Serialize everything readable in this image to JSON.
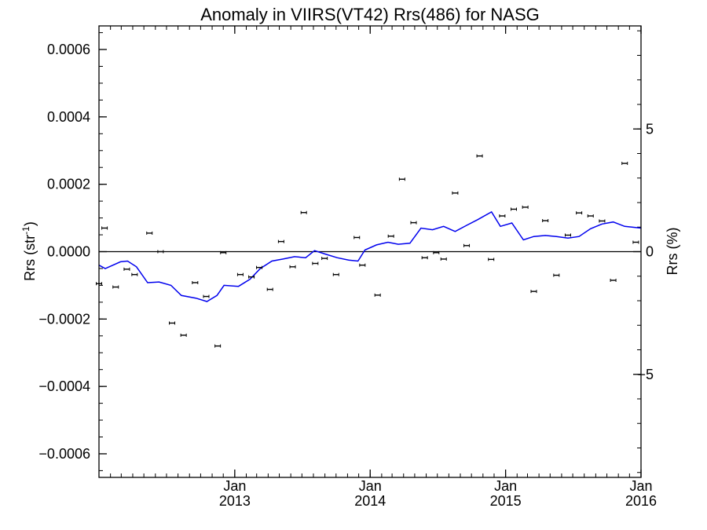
{
  "chart_data": {
    "type": "scatter",
    "title": "Anomaly in VIIRS(VT42) Rrs(486) for NASG",
    "ylabel_left": "Rrs (str",
    "ylabel_left_sup": "-1",
    "ylabel_left_close": ")",
    "ylabel_right": "Rrs (%)",
    "xlim": [
      "2012-01-01",
      "2016-01-01"
    ],
    "ylim": [
      -0.00067,
      0.00067
    ],
    "y2lim": [
      -9.2,
      9.2
    ],
    "grid": false,
    "x_ticks": [
      {
        "date": "2013-01-01",
        "month": "Jan",
        "year": "2013"
      },
      {
        "date": "2014-01-01",
        "month": "Jan",
        "year": "2014"
      },
      {
        "date": "2015-01-01",
        "month": "Jan",
        "year": "2015"
      },
      {
        "date": "2016-01-01",
        "month": "Jan",
        "year": "2016"
      }
    ],
    "y_ticks": [
      {
        "value": 0.0006,
        "label": "0.0006"
      },
      {
        "value": 0.0004,
        "label": "0.0004"
      },
      {
        "value": 0.0002,
        "label": "0.0002"
      },
      {
        "value": 0.0,
        "label": "0.0000"
      },
      {
        "value": -0.0002,
        "label": "−0.0002"
      },
      {
        "value": -0.0004,
        "label": "−0.0004"
      },
      {
        "value": -0.0006,
        "label": "−0.0006"
      }
    ],
    "y2_ticks": [
      {
        "value": 5,
        "label": "5"
      },
      {
        "value": 0,
        "label": "0"
      },
      {
        "value": -5,
        "label": "−5"
      }
    ],
    "zero_line": 0,
    "series": [
      {
        "kind": "points-with-errorbars",
        "axis": "left",
        "color": "#000000",
        "points": [
          {
            "x": "2012-01-01",
            "y": -9.5e-05
          },
          {
            "x": "2012-01-16",
            "y": 7e-05
          },
          {
            "x": "2012-02-15",
            "y": -0.000105
          },
          {
            "x": "2012-03-16",
            "y": -5.2e-05
          },
          {
            "x": "2012-04-06",
            "y": -6.8e-05
          },
          {
            "x": "2012-05-16",
            "y": 5.5e-05
          },
          {
            "x": "2012-06-15",
            "y": 0.0
          },
          {
            "x": "2012-07-16",
            "y": -0.000212
          },
          {
            "x": "2012-08-16",
            "y": -0.000248
          },
          {
            "x": "2012-09-16",
            "y": -9.2e-05
          },
          {
            "x": "2012-10-16",
            "y": -0.000133
          },
          {
            "x": "2012-11-16",
            "y": -0.00028
          },
          {
            "x": "2012-12-01",
            "y": -3e-06
          },
          {
            "x": "2013-01-16",
            "y": -6.8e-05
          },
          {
            "x": "2013-02-15",
            "y": -7.5e-05
          },
          {
            "x": "2013-03-08",
            "y": -4.7e-05
          },
          {
            "x": "2013-04-06",
            "y": -0.000112
          },
          {
            "x": "2013-05-06",
            "y": 3e-05
          },
          {
            "x": "2013-06-06",
            "y": -4.5e-05
          },
          {
            "x": "2013-07-06",
            "y": 0.000116
          },
          {
            "x": "2013-08-06",
            "y": -3.5e-05
          },
          {
            "x": "2013-08-31",
            "y": -2e-05
          },
          {
            "x": "2013-10-01",
            "y": -6.8e-05
          },
          {
            "x": "2013-11-26",
            "y": 4.2e-05
          },
          {
            "x": "2013-12-11",
            "y": -4e-05
          },
          {
            "x": "2014-01-21",
            "y": -0.000129
          },
          {
            "x": "2014-02-26",
            "y": 4.6e-05
          },
          {
            "x": "2014-03-28",
            "y": 0.000215
          },
          {
            "x": "2014-04-28",
            "y": 8.6e-05
          },
          {
            "x": "2014-05-28",
            "y": -1.8e-05
          },
          {
            "x": "2014-06-28",
            "y": -3e-06
          },
          {
            "x": "2014-07-18",
            "y": -2.2e-05
          },
          {
            "x": "2014-08-18",
            "y": 0.000174
          },
          {
            "x": "2014-09-18",
            "y": 1.8e-05
          },
          {
            "x": "2014-10-23",
            "y": 0.000284
          },
          {
            "x": "2014-11-23",
            "y": -2.3e-05
          },
          {
            "x": "2014-12-23",
            "y": 0.000106
          },
          {
            "x": "2015-01-23",
            "y": 0.000126
          },
          {
            "x": "2015-02-23",
            "y": 0.000132
          },
          {
            "x": "2015-03-18",
            "y": -0.000118
          },
          {
            "x": "2015-04-18",
            "y": 9.2e-05
          },
          {
            "x": "2015-05-18",
            "y": -7e-05
          },
          {
            "x": "2015-06-18",
            "y": 4.9e-05
          },
          {
            "x": "2015-07-18",
            "y": 0.000115
          },
          {
            "x": "2015-08-18",
            "y": 0.000106
          },
          {
            "x": "2015-09-18",
            "y": 9.1e-05
          },
          {
            "x": "2015-10-18",
            "y": -8.5e-05
          },
          {
            "x": "2015-11-18",
            "y": 0.000262
          },
          {
            "x": "2015-12-18",
            "y": 2.8e-05
          }
        ]
      },
      {
        "kind": "line",
        "axis": "left",
        "color": "#0000ee",
        "points": [
          {
            "x": "2012-01-01",
            "y": -4e-05
          },
          {
            "x": "2012-01-18",
            "y": -5e-05
          },
          {
            "x": "2012-02-28",
            "y": -3e-05
          },
          {
            "x": "2012-03-18",
            "y": -2.8e-05
          },
          {
            "x": "2012-04-11",
            "y": -4.5e-05
          },
          {
            "x": "2012-05-11",
            "y": -9.2e-05
          },
          {
            "x": "2012-06-11",
            "y": -9e-05
          },
          {
            "x": "2012-07-13",
            "y": -0.0001
          },
          {
            "x": "2012-08-10",
            "y": -0.00013
          },
          {
            "x": "2012-09-18",
            "y": -0.000138
          },
          {
            "x": "2012-10-18",
            "y": -0.000148
          },
          {
            "x": "2012-11-14",
            "y": -0.00013
          },
          {
            "x": "2012-12-03",
            "y": -0.0001
          },
          {
            "x": "2013-01-11",
            "y": -0.000103
          },
          {
            "x": "2013-02-11",
            "y": -8.2e-05
          },
          {
            "x": "2013-03-11",
            "y": -5e-05
          },
          {
            "x": "2013-04-11",
            "y": -2.8e-05
          },
          {
            "x": "2013-05-11",
            "y": -2.2e-05
          },
          {
            "x": "2013-06-11",
            "y": -1.5e-05
          },
          {
            "x": "2013-07-11",
            "y": -1.8e-05
          },
          {
            "x": "2013-08-04",
            "y": 3e-06
          },
          {
            "x": "2013-09-04",
            "y": -8e-06
          },
          {
            "x": "2013-10-04",
            "y": -1.8e-05
          },
          {
            "x": "2013-11-04",
            "y": -2.5e-05
          },
          {
            "x": "2013-11-29",
            "y": -2.8e-05
          },
          {
            "x": "2013-12-18",
            "y": 5e-06
          },
          {
            "x": "2014-01-18",
            "y": 2e-05
          },
          {
            "x": "2014-02-18",
            "y": 2.8e-05
          },
          {
            "x": "2014-03-18",
            "y": 2.2e-05
          },
          {
            "x": "2014-04-18",
            "y": 2.5e-05
          },
          {
            "x": "2014-05-18",
            "y": 7e-05
          },
          {
            "x": "2014-06-18",
            "y": 6.5e-05
          },
          {
            "x": "2014-07-18",
            "y": 7.5e-05
          },
          {
            "x": "2014-08-18",
            "y": 6e-05
          },
          {
            "x": "2014-09-18",
            "y": 7.8e-05
          },
          {
            "x": "2014-10-18",
            "y": 9.5e-05
          },
          {
            "x": "2014-11-24",
            "y": 0.000118
          },
          {
            "x": "2014-12-18",
            "y": 7.5e-05
          },
          {
            "x": "2015-01-18",
            "y": 8.5e-05
          },
          {
            "x": "2015-02-18",
            "y": 3.5e-05
          },
          {
            "x": "2015-03-18",
            "y": 4.5e-05
          },
          {
            "x": "2015-04-18",
            "y": 4.8e-05
          },
          {
            "x": "2015-05-18",
            "y": 4.5e-05
          },
          {
            "x": "2015-06-18",
            "y": 4e-05
          },
          {
            "x": "2015-07-18",
            "y": 4.5e-05
          },
          {
            "x": "2015-08-18",
            "y": 6.8e-05
          },
          {
            "x": "2015-09-18",
            "y": 8.2e-05
          },
          {
            "x": "2015-10-18",
            "y": 8.8e-05
          },
          {
            "x": "2015-11-18",
            "y": 7.5e-05
          },
          {
            "x": "2016-01-01",
            "y": 7e-05
          }
        ]
      }
    ]
  }
}
